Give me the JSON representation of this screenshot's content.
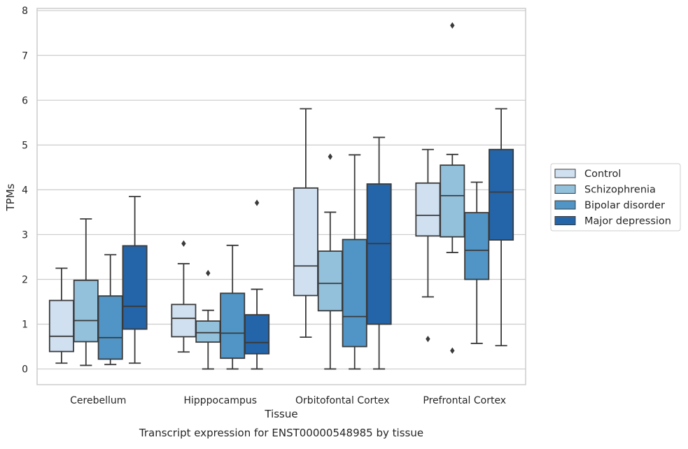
{
  "chart_data": {
    "type": "box",
    "title": "",
    "caption": "Transcript expression for ENST00000548985 by tissue",
    "xlabel": "Tissue",
    "ylabel": "TPMs",
    "ylim": [
      -0.35,
      8.05
    ],
    "yticks": [
      0,
      1,
      2,
      3,
      4,
      5,
      6,
      7,
      8
    ],
    "grid": "horizontal",
    "legend_position": "right",
    "categories": [
      "Cerebellum",
      "Hipppocampus",
      "Orbitofontal Cortex",
      "Prefrontal Cortex"
    ],
    "series": [
      {
        "name": "Control",
        "color": "#d0e0f1",
        "boxes": [
          {
            "whislo": 0.13,
            "q1": 0.39,
            "med": 0.73,
            "q3": 1.53,
            "whishi": 2.25,
            "fliers": []
          },
          {
            "whislo": 0.38,
            "q1": 0.72,
            "med": 1.13,
            "q3": 1.44,
            "whishi": 2.35,
            "fliers": [
              2.8
            ]
          },
          {
            "whislo": 0.71,
            "q1": 1.64,
            "med": 2.3,
            "q3": 4.04,
            "whishi": 5.81,
            "fliers": []
          },
          {
            "whislo": 1.61,
            "q1": 2.97,
            "med": 3.43,
            "q3": 4.15,
            "whishi": 4.9,
            "fliers": [
              0.67
            ]
          }
        ]
      },
      {
        "name": "Schizophrenia",
        "color": "#93c1dc",
        "boxes": [
          {
            "whislo": 0.08,
            "q1": 0.61,
            "med": 1.08,
            "q3": 1.98,
            "whishi": 3.35,
            "fliers": []
          },
          {
            "whislo": 0.0,
            "q1": 0.6,
            "med": 0.81,
            "q3": 1.07,
            "whishi": 1.31,
            "fliers": [
              2.14
            ]
          },
          {
            "whislo": 0.0,
            "q1": 1.3,
            "med": 1.91,
            "q3": 2.63,
            "whishi": 3.5,
            "fliers": [
              4.74
            ]
          },
          {
            "whislo": 2.6,
            "q1": 2.95,
            "med": 3.87,
            "q3": 4.55,
            "whishi": 4.79,
            "fliers": [
              7.67,
              0.41
            ]
          }
        ]
      },
      {
        "name": "Bipolar disorder",
        "color": "#5095c6",
        "boxes": [
          {
            "whislo": 0.1,
            "q1": 0.22,
            "med": 0.7,
            "q3": 1.63,
            "whishi": 2.55,
            "fliers": []
          },
          {
            "whislo": 0.0,
            "q1": 0.24,
            "med": 0.8,
            "q3": 1.69,
            "whishi": 2.76,
            "fliers": []
          },
          {
            "whislo": 0.0,
            "q1": 0.5,
            "med": 1.17,
            "q3": 2.89,
            "whishi": 4.78,
            "fliers": []
          },
          {
            "whislo": 0.57,
            "q1": 2.0,
            "med": 2.65,
            "q3": 3.49,
            "whishi": 4.17,
            "fliers": []
          }
        ]
      },
      {
        "name": "Major depression",
        "color": "#2464a8",
        "boxes": [
          {
            "whislo": 0.13,
            "q1": 0.89,
            "med": 1.4,
            "q3": 2.75,
            "whishi": 3.85,
            "fliers": []
          },
          {
            "whislo": 0.0,
            "q1": 0.34,
            "med": 0.59,
            "q3": 1.21,
            "whishi": 1.78,
            "fliers": [
              3.71
            ]
          },
          {
            "whislo": 0.0,
            "q1": 1.0,
            "med": 2.8,
            "q3": 4.13,
            "whishi": 5.17,
            "fliers": []
          },
          {
            "whislo": 0.52,
            "q1": 2.88,
            "med": 3.95,
            "q3": 4.9,
            "whishi": 5.81,
            "fliers": []
          }
        ]
      }
    ],
    "colors": {
      "grid": "#cccccc",
      "frame": "#cccccc",
      "box_edge": "#3a3a3a",
      "legend_frame": "#cccccc"
    }
  }
}
